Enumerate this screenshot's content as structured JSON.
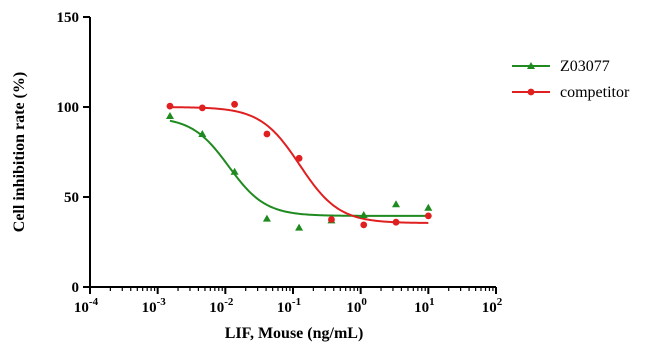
{
  "chart_data": {
    "type": "scatter",
    "xlabel": "LIF, Mouse (ng/mL)",
    "ylabel": "Cell inhibition rate (%)",
    "xscale": "log",
    "xlim": [
      0.0001,
      100
    ],
    "ylim": [
      0,
      150
    ],
    "xtick_labels": [
      {
        "base": "10",
        "exp": "-4"
      },
      {
        "base": "10",
        "exp": "-3"
      },
      {
        "base": "10",
        "exp": "-2"
      },
      {
        "base": "10",
        "exp": "-1"
      },
      {
        "base": "10",
        "exp": "0"
      },
      {
        "base": "10",
        "exp": "1"
      },
      {
        "base": "10",
        "exp": "2"
      }
    ],
    "yticks": [
      0,
      50,
      100,
      150
    ],
    "ytick_labels": [
      "0",
      "50",
      "100",
      "150"
    ],
    "grid": false,
    "legend_position": "top-right",
    "series": [
      {
        "name": "Z03077",
        "color": "#1f8a1f",
        "marker": "triangle",
        "points": [
          {
            "x": 0.00152,
            "y": 95
          },
          {
            "x": 0.00457,
            "y": 85
          },
          {
            "x": 0.0137,
            "y": 64
          },
          {
            "x": 0.0412,
            "y": 38
          },
          {
            "x": 0.123,
            "y": 33
          },
          {
            "x": 0.37,
            "y": 37
          },
          {
            "x": 1.11,
            "y": 40
          },
          {
            "x": 3.33,
            "y": 46
          },
          {
            "x": 10,
            "y": 44
          }
        ],
        "fit": {
          "bottom": 39.5,
          "top": 94.5,
          "log_ic50": -1.95,
          "hill": 1.6
        }
      },
      {
        "name": "competitor",
        "color": "#e02020",
        "marker": "circle",
        "points": [
          {
            "x": 0.00152,
            "y": 100.5
          },
          {
            "x": 0.00457,
            "y": 99.5
          },
          {
            "x": 0.0137,
            "y": 101.5
          },
          {
            "x": 0.0412,
            "y": 85
          },
          {
            "x": 0.123,
            "y": 71.5
          },
          {
            "x": 0.37,
            "y": 37.5
          },
          {
            "x": 1.11,
            "y": 34.5
          },
          {
            "x": 3.33,
            "y": 36
          },
          {
            "x": 10,
            "y": 39.5
          }
        ],
        "fit": {
          "bottom": 35.5,
          "top": 100,
          "log_ic50": -0.9,
          "hill": 1.5
        }
      }
    ]
  }
}
